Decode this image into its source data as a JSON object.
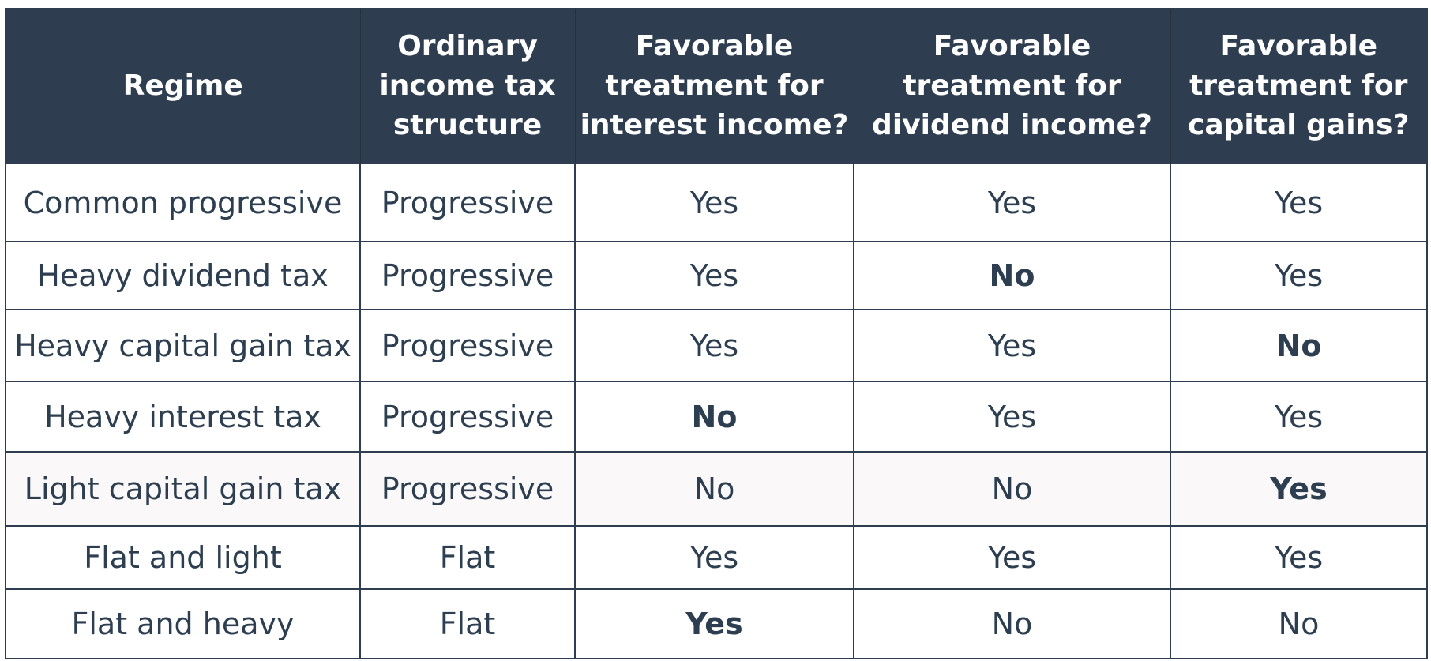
{
  "table": {
    "headers": [
      "Regime",
      "Ordinary\nincome tax\nstructure",
      "Favorable\ntreatment for\ninterest income?",
      "Favorable\ntreatment for\ndividend income?",
      "Favorable\ntreatment for\ncapital gains?"
    ],
    "rows": [
      {
        "regime": "Common progressive",
        "structure": "Progressive",
        "interest": "Yes",
        "dividend": "Yes",
        "capital_gains": "Yes",
        "bold": [],
        "highlight": false
      },
      {
        "regime": "Heavy dividend tax",
        "structure": "Progressive",
        "interest": "Yes",
        "dividend": "No",
        "capital_gains": "Yes",
        "bold": [
          "dividend"
        ],
        "highlight": false
      },
      {
        "regime": "Heavy capital gain tax",
        "structure": "Progressive",
        "interest": "Yes",
        "dividend": "Yes",
        "capital_gains": "No",
        "bold": [
          "capital_gains"
        ],
        "highlight": false
      },
      {
        "regime": "Heavy interest tax",
        "structure": "Progressive",
        "interest": "No",
        "dividend": "Yes",
        "capital_gains": "Yes",
        "bold": [
          "interest"
        ],
        "highlight": false
      },
      {
        "regime": "Light capital gain tax",
        "structure": "Progressive",
        "interest": "No",
        "dividend": "No",
        "capital_gains": "Yes",
        "bold": [
          "capital_gains"
        ],
        "highlight": true
      },
      {
        "regime": "Flat and light",
        "structure": "Flat",
        "interest": "Yes",
        "dividend": "Yes",
        "capital_gains": "Yes",
        "bold": [],
        "highlight": false
      },
      {
        "regime": "Flat and heavy",
        "structure": "Flat",
        "interest": "Yes",
        "dividend": "No",
        "capital_gains": "No",
        "bold": [
          "interest"
        ],
        "highlight": false
      }
    ]
  },
  "colors": {
    "header_bg": "#2e3e50",
    "header_text": "#ffffff",
    "body_text": "#2c3e50",
    "border": "#2e3e50",
    "highlight_row": "#fbf8f9"
  }
}
